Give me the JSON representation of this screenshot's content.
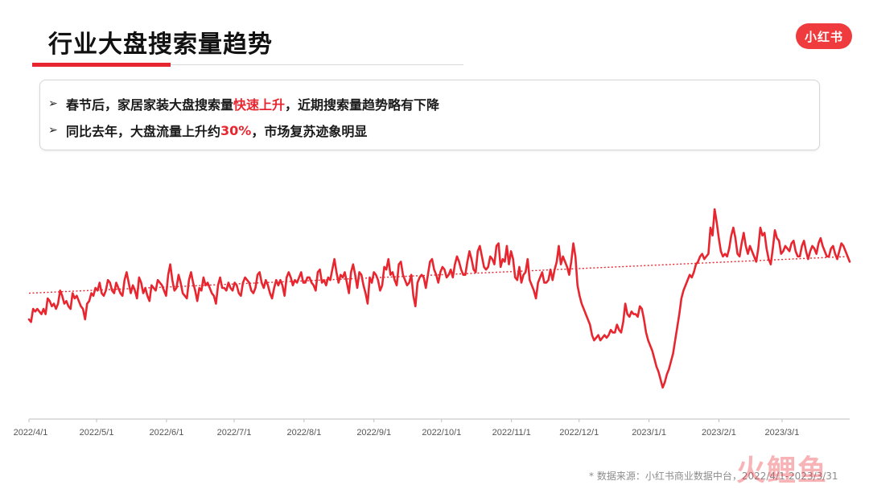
{
  "title": "行业大盘搜索量趋势",
  "logo_text": "小红书",
  "insights": [
    {
      "pre": "春节后，家居家装大盘搜索量",
      "highlight": "快速上升",
      "post": "，近期搜索量趋势略有下降"
    },
    {
      "pre": "同比去年，大盘流量上升约",
      "highlight": "30%",
      "post": "，市场复苏迹象明显"
    }
  ],
  "source_note": "* 数据来源：小红书商业数据中台，2022/4/1-2023/3/31",
  "watermark": "火鲤鱼",
  "colors": {
    "accent": "#e8262f",
    "line": "#e8262f",
    "text": "#1a1a1a",
    "muted": "#8c8c8c"
  },
  "chart_data": {
    "type": "line",
    "title": "",
    "xlabel": "",
    "ylabel": "",
    "x_start": "2022/4/1",
    "x_end": "2023/3/31",
    "x_ticks": [
      "2022/4/1",
      "2022/5/1",
      "2022/6/1",
      "2022/7/1",
      "2022/8/1",
      "2022/9/1",
      "2022/10/1",
      "2022/11/1",
      "2022/12/1",
      "2023/1/1",
      "2023/2/1",
      "2023/3/1"
    ],
    "ylim": [
      0,
      100
    ],
    "grid": false,
    "legend": "none",
    "series": [
      {
        "style": "solid",
        "values": [
          38,
          37,
          42,
          41,
          42,
          41,
          40,
          42,
          40,
          46,
          45,
          43,
          44,
          42,
          44,
          49,
          47,
          44,
          45,
          43,
          42,
          48,
          46,
          47,
          45,
          43,
          42,
          38,
          44,
          45,
          48,
          47,
          50,
          49,
          52,
          48,
          47,
          49,
          53,
          52,
          49,
          48,
          52,
          50,
          48,
          47,
          53,
          56,
          52,
          48,
          51,
          49,
          46,
          54,
          52,
          48,
          50,
          47,
          45,
          51,
          50,
          49,
          53,
          52,
          51,
          49,
          47,
          55,
          59,
          53,
          49,
          50,
          55,
          52,
          48,
          47,
          46,
          53,
          56,
          52,
          49,
          45,
          50,
          49,
          54,
          51,
          52,
          50,
          48,
          47,
          44,
          51,
          54,
          50,
          50,
          49,
          52,
          50,
          49,
          52,
          51,
          48,
          47,
          52,
          54,
          53,
          52,
          49,
          48,
          50,
          55,
          56,
          52,
          50,
          53,
          51,
          48,
          46,
          50,
          53,
          51,
          53,
          51,
          47,
          54,
          56,
          54,
          51,
          53,
          52,
          54,
          56,
          52,
          52,
          54,
          54,
          52,
          51,
          49,
          56,
          57,
          52,
          53,
          51,
          54,
          53,
          57,
          61,
          56,
          52,
          55,
          54,
          56,
          52,
          48,
          56,
          59,
          55,
          50,
          56,
          55,
          51,
          48,
          44,
          54,
          52,
          56,
          55,
          53,
          49,
          51,
          58,
          57,
          61,
          55,
          56,
          53,
          51,
          59,
          60,
          55,
          53,
          51,
          52,
          55,
          47,
          43,
          52,
          54,
          55,
          54,
          50,
          55,
          60,
          61,
          57,
          55,
          52,
          56,
          58,
          57,
          54,
          55,
          57,
          54,
          59,
          62,
          60,
          57,
          55,
          55,
          60,
          64,
          61,
          57,
          56,
          64,
          66,
          62,
          58,
          57,
          58,
          62,
          61,
          59,
          66,
          67,
          58,
          61,
          60,
          66,
          59,
          64,
          61,
          54,
          53,
          58,
          52,
          55,
          56,
          61,
          53,
          51,
          49,
          46,
          52,
          54,
          56,
          52,
          52,
          53,
          57,
          53,
          57,
          60,
          66,
          59,
          62,
          60,
          58,
          55,
          60,
          67,
          62,
          51,
          47,
          44,
          42,
          40,
          38,
          36,
          32,
          30,
          31,
          32,
          30,
          31,
          32,
          31,
          32,
          34,
          33,
          33,
          36,
          34,
          33,
          37,
          44,
          40,
          39,
          41,
          40,
          40,
          39,
          43,
          42,
          38,
          33,
          30,
          28,
          26,
          23,
          20,
          18,
          15,
          12,
          14,
          17,
          19,
          22,
          25,
          30,
          35,
          40,
          46,
          49,
          51,
          53,
          55,
          54,
          56,
          59,
          60,
          62,
          63,
          61,
          62,
          63,
          73,
          70,
          80,
          75,
          69,
          64,
          62,
          63,
          62,
          65,
          70,
          73,
          69,
          63,
          62,
          67,
          71,
          66,
          63,
          66,
          64,
          62,
          60,
          65,
          73,
          70,
          71,
          65,
          61,
          59,
          65,
          72,
          69,
          68,
          63,
          64,
          66,
          65,
          64,
          67,
          68,
          64,
          62,
          62,
          66,
          68,
          64,
          61,
          64,
          66,
          65,
          63,
          67,
          69,
          66,
          64,
          62,
          62,
          65,
          66,
          63,
          61,
          64,
          67,
          66,
          64,
          62,
          60
        ]
      },
      {
        "style": "dotted",
        "values": [
          48.0,
          62.0
        ]
      }
    ]
  }
}
